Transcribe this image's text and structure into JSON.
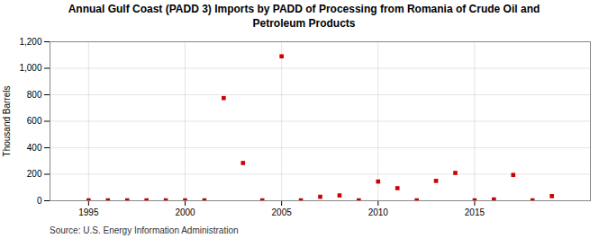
{
  "chart_data": {
    "type": "scatter",
    "title": "Annual Gulf Coast (PADD 3) Imports by PADD of Processing from Romania of Crude Oil and\nPetroleum Products",
    "ylabel": "Thousand Barrels",
    "source": "Source: U.S. Energy Information Administration",
    "x": [
      1995,
      1996,
      1997,
      1998,
      1999,
      2000,
      2001,
      2002,
      2003,
      2004,
      2005,
      2006,
      2007,
      2008,
      2009,
      2010,
      2011,
      2012,
      2013,
      2014,
      2015,
      2016,
      2017,
      2018,
      2019
    ],
    "values": [
      3,
      3,
      3,
      3,
      3,
      3,
      3,
      775,
      285,
      3,
      1090,
      3,
      30,
      40,
      3,
      145,
      95,
      3,
      150,
      210,
      3,
      10,
      195,
      3,
      35
    ],
    "color": "#cc0000",
    "marker": "square",
    "xlim": [
      1993,
      2021
    ],
    "xticks": [
      1995,
      2000,
      2005,
      2010,
      2015
    ],
    "ylim": [
      0,
      1200
    ],
    "yticks": [
      0,
      200,
      400,
      600,
      {
        "value": 800,
        "label": "800"
      },
      {
        "value": 1000,
        "label": "1,000"
      },
      {
        "value": 1200,
        "label": "1,200"
      }
    ],
    "grid": true
  }
}
